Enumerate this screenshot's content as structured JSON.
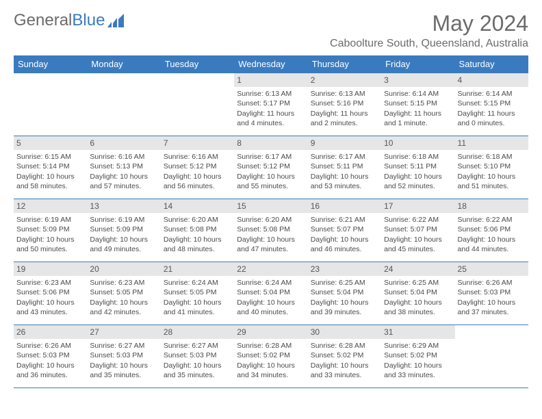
{
  "brand": {
    "first": "General",
    "second": "Blue"
  },
  "title": "May 2024",
  "location": "Caboolture South, Queensland, Australia",
  "colors": {
    "header_bg": "#3a7bbf",
    "header_text": "#ffffff",
    "border": "#3a7bbf",
    "daynum_bg": "#e6e6e6",
    "text": "#4a4a4a",
    "title_text": "#6b6b6b"
  },
  "day_headers": [
    "Sunday",
    "Monday",
    "Tuesday",
    "Wednesday",
    "Thursday",
    "Friday",
    "Saturday"
  ],
  "weeks": [
    [
      null,
      null,
      null,
      {
        "n": "1",
        "sr": "6:13 AM",
        "ss": "5:17 PM",
        "dl": "11 hours and 4 minutes."
      },
      {
        "n": "2",
        "sr": "6:13 AM",
        "ss": "5:16 PM",
        "dl": "11 hours and 2 minutes."
      },
      {
        "n": "3",
        "sr": "6:14 AM",
        "ss": "5:15 PM",
        "dl": "11 hours and 1 minute."
      },
      {
        "n": "4",
        "sr": "6:14 AM",
        "ss": "5:15 PM",
        "dl": "11 hours and 0 minutes."
      }
    ],
    [
      {
        "n": "5",
        "sr": "6:15 AM",
        "ss": "5:14 PM",
        "dl": "10 hours and 58 minutes."
      },
      {
        "n": "6",
        "sr": "6:16 AM",
        "ss": "5:13 PM",
        "dl": "10 hours and 57 minutes."
      },
      {
        "n": "7",
        "sr": "6:16 AM",
        "ss": "5:12 PM",
        "dl": "10 hours and 56 minutes."
      },
      {
        "n": "8",
        "sr": "6:17 AM",
        "ss": "5:12 PM",
        "dl": "10 hours and 55 minutes."
      },
      {
        "n": "9",
        "sr": "6:17 AM",
        "ss": "5:11 PM",
        "dl": "10 hours and 53 minutes."
      },
      {
        "n": "10",
        "sr": "6:18 AM",
        "ss": "5:11 PM",
        "dl": "10 hours and 52 minutes."
      },
      {
        "n": "11",
        "sr": "6:18 AM",
        "ss": "5:10 PM",
        "dl": "10 hours and 51 minutes."
      }
    ],
    [
      {
        "n": "12",
        "sr": "6:19 AM",
        "ss": "5:09 PM",
        "dl": "10 hours and 50 minutes."
      },
      {
        "n": "13",
        "sr": "6:19 AM",
        "ss": "5:09 PM",
        "dl": "10 hours and 49 minutes."
      },
      {
        "n": "14",
        "sr": "6:20 AM",
        "ss": "5:08 PM",
        "dl": "10 hours and 48 minutes."
      },
      {
        "n": "15",
        "sr": "6:20 AM",
        "ss": "5:08 PM",
        "dl": "10 hours and 47 minutes."
      },
      {
        "n": "16",
        "sr": "6:21 AM",
        "ss": "5:07 PM",
        "dl": "10 hours and 46 minutes."
      },
      {
        "n": "17",
        "sr": "6:22 AM",
        "ss": "5:07 PM",
        "dl": "10 hours and 45 minutes."
      },
      {
        "n": "18",
        "sr": "6:22 AM",
        "ss": "5:06 PM",
        "dl": "10 hours and 44 minutes."
      }
    ],
    [
      {
        "n": "19",
        "sr": "6:23 AM",
        "ss": "5:06 PM",
        "dl": "10 hours and 43 minutes."
      },
      {
        "n": "20",
        "sr": "6:23 AM",
        "ss": "5:05 PM",
        "dl": "10 hours and 42 minutes."
      },
      {
        "n": "21",
        "sr": "6:24 AM",
        "ss": "5:05 PM",
        "dl": "10 hours and 41 minutes."
      },
      {
        "n": "22",
        "sr": "6:24 AM",
        "ss": "5:04 PM",
        "dl": "10 hours and 40 minutes."
      },
      {
        "n": "23",
        "sr": "6:25 AM",
        "ss": "5:04 PM",
        "dl": "10 hours and 39 minutes."
      },
      {
        "n": "24",
        "sr": "6:25 AM",
        "ss": "5:04 PM",
        "dl": "10 hours and 38 minutes."
      },
      {
        "n": "25",
        "sr": "6:26 AM",
        "ss": "5:03 PM",
        "dl": "10 hours and 37 minutes."
      }
    ],
    [
      {
        "n": "26",
        "sr": "6:26 AM",
        "ss": "5:03 PM",
        "dl": "10 hours and 36 minutes."
      },
      {
        "n": "27",
        "sr": "6:27 AM",
        "ss": "5:03 PM",
        "dl": "10 hours and 35 minutes."
      },
      {
        "n": "28",
        "sr": "6:27 AM",
        "ss": "5:03 PM",
        "dl": "10 hours and 35 minutes."
      },
      {
        "n": "29",
        "sr": "6:28 AM",
        "ss": "5:02 PM",
        "dl": "10 hours and 34 minutes."
      },
      {
        "n": "30",
        "sr": "6:28 AM",
        "ss": "5:02 PM",
        "dl": "10 hours and 33 minutes."
      },
      {
        "n": "31",
        "sr": "6:29 AM",
        "ss": "5:02 PM",
        "dl": "10 hours and 33 minutes."
      },
      null
    ]
  ],
  "labels": {
    "sunrise": "Sunrise:",
    "sunset": "Sunset:",
    "daylight": "Daylight:"
  }
}
